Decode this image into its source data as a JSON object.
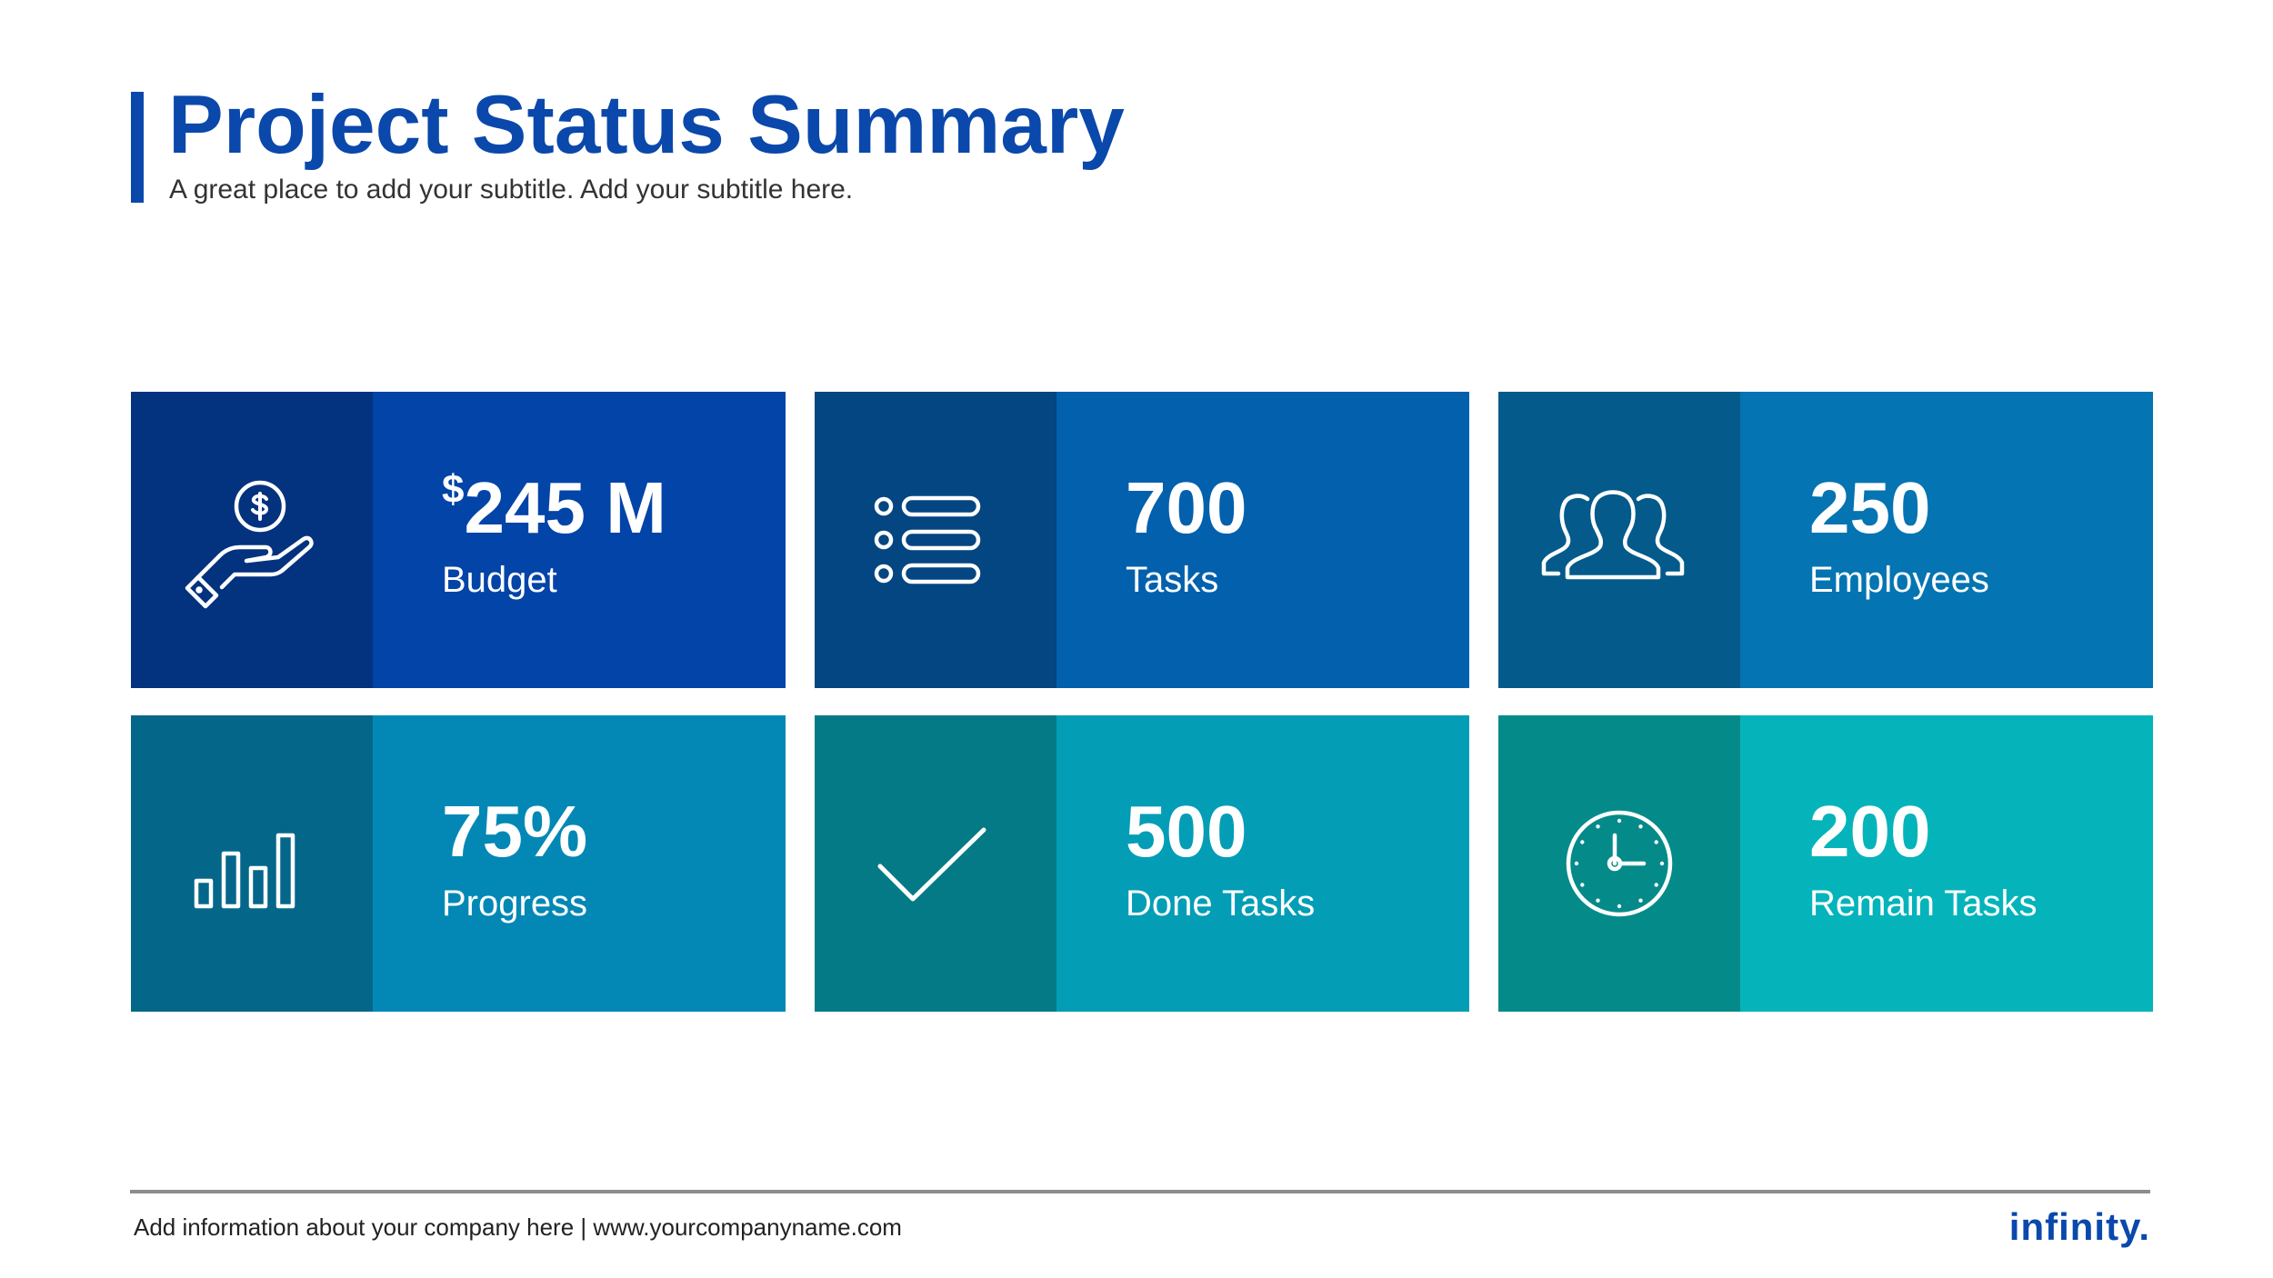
{
  "header": {
    "title": "Project Status Summary",
    "subtitle": "A great place to add your subtitle. Add your subtitle here."
  },
  "cards": [
    {
      "currency": "$",
      "value": "245 M",
      "label": "Budget",
      "icon": "money-hand-icon",
      "icon_color": "#03327f",
      "color": "#0244a8"
    },
    {
      "value": "700",
      "label": "Tasks",
      "icon": "list-icon",
      "icon_color": "#044681",
      "color": "#0260ad"
    },
    {
      "value": "250",
      "label": "Employees",
      "icon": "people-icon",
      "icon_color": "#045a8a",
      "color": "#0474b2"
    },
    {
      "value": "75%",
      "label": "Progress",
      "icon": "bar-chart-icon",
      "icon_color": "#04678a",
      "color": "#0388b5"
    },
    {
      "value": "500",
      "label": "Done Tasks",
      "icon": "check-icon",
      "icon_color": "#057a87",
      "color": "#039db6"
    },
    {
      "value": "200",
      "label": "Remain Tasks",
      "icon": "clock-icon",
      "icon_color": "#058a8a",
      "color": "#04b4ba"
    }
  ],
  "footer": {
    "info": "Add information about your company here | www.yourcompanyname.com",
    "logo": "infinity."
  },
  "colors": {
    "brand": "#0a48ab",
    "footer_line": "#8c8c8c"
  }
}
